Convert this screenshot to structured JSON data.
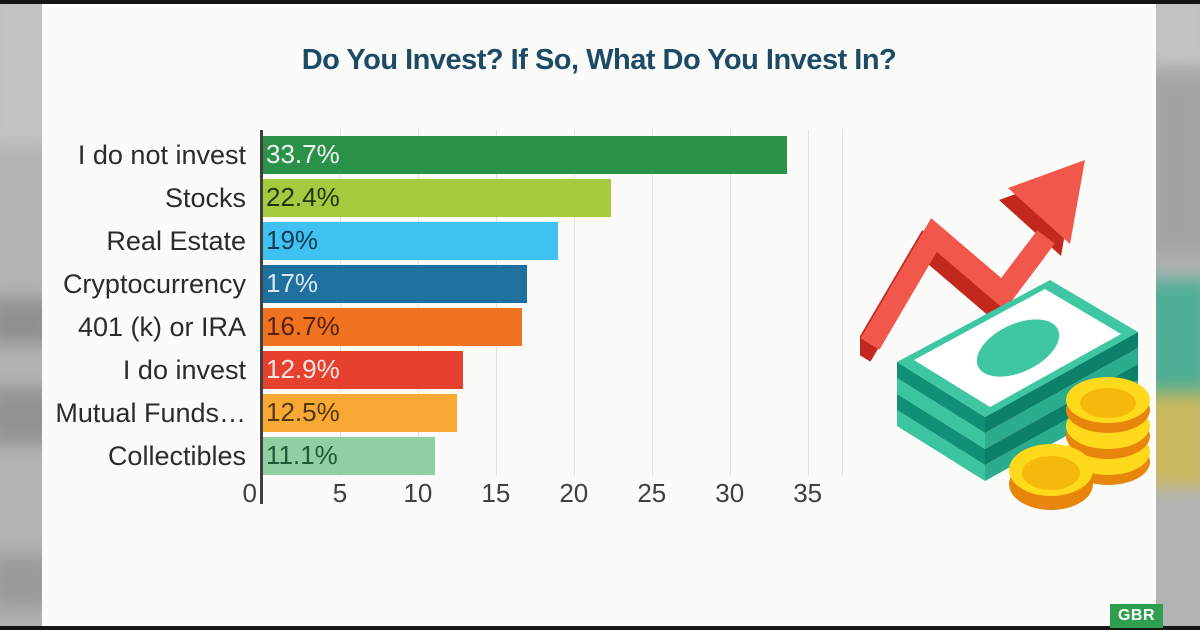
{
  "title": "Do You Invest? If So, What Do You Invest In?",
  "watermark": {
    "label": "GBR"
  },
  "chart_data": {
    "type": "bar",
    "orientation": "horizontal",
    "title": "Do You Invest? If So, What Do You Invest In?",
    "categories": [
      "I do not invest",
      "Stocks",
      "Real Estate",
      "Cryptocurrency",
      "401 (k) or IRA",
      "I do invest",
      "Mutual Funds…",
      "Collectibles"
    ],
    "values": [
      33.7,
      22.4,
      19,
      17,
      16.7,
      12.9,
      12.5,
      11.1
    ],
    "value_labels": [
      "33.7%",
      "22.4%",
      "19%",
      "17%",
      "16.7%",
      "12.9%",
      "12.5%",
      "11.1%"
    ],
    "bar_colors": [
      "#2B9148",
      "#A5CA3E",
      "#3FC2F1",
      "#1F6F9F",
      "#EF7320",
      "#E6402F",
      "#F8A933",
      "#90CFA3"
    ],
    "value_label_colors": [
      "#F2F7F2",
      "#243310",
      "#123B55",
      "#D7E9F2",
      "#56220A",
      "#FBE8E3",
      "#53380F",
      "#1C5A38"
    ],
    "xlabel": "",
    "ylabel": "",
    "xlim": [
      0,
      37.2
    ],
    "x_ticks": [
      0,
      5,
      10,
      15,
      20,
      25,
      30,
      35
    ],
    "grid": true,
    "legend": false
  },
  "colors": {
    "title": "#1C4B66",
    "category-label": "#2B2B2B",
    "tick-label": "#404040",
    "axis-line": "#3F3F3F",
    "gridline": "#E3E3E5",
    "card-bg": "#FBFBFA",
    "badge-bg": "#2E9E4F",
    "badge-text": "#FFFFFF",
    "arrow-red": "#F1584B",
    "arrow-red-dark": "#C2281D",
    "bill-teal": "#3FC7A4",
    "bill-face": "#FFFFFF",
    "bill-stripe-dark": "#0F9077",
    "bill-stripe-light": "#3CC4A1",
    "bill-stripe-dark2": "#0C8169",
    "bill-stripe-light2": "#2BAD8D",
    "coin-gold": "#FFD91C",
    "coin-gold-deep": "#F5B90B",
    "coin-edge": "#E8860B"
  },
  "illustration": {
    "description": "rising red zigzag arrow over a stack of teal banknotes with gold coins"
  }
}
